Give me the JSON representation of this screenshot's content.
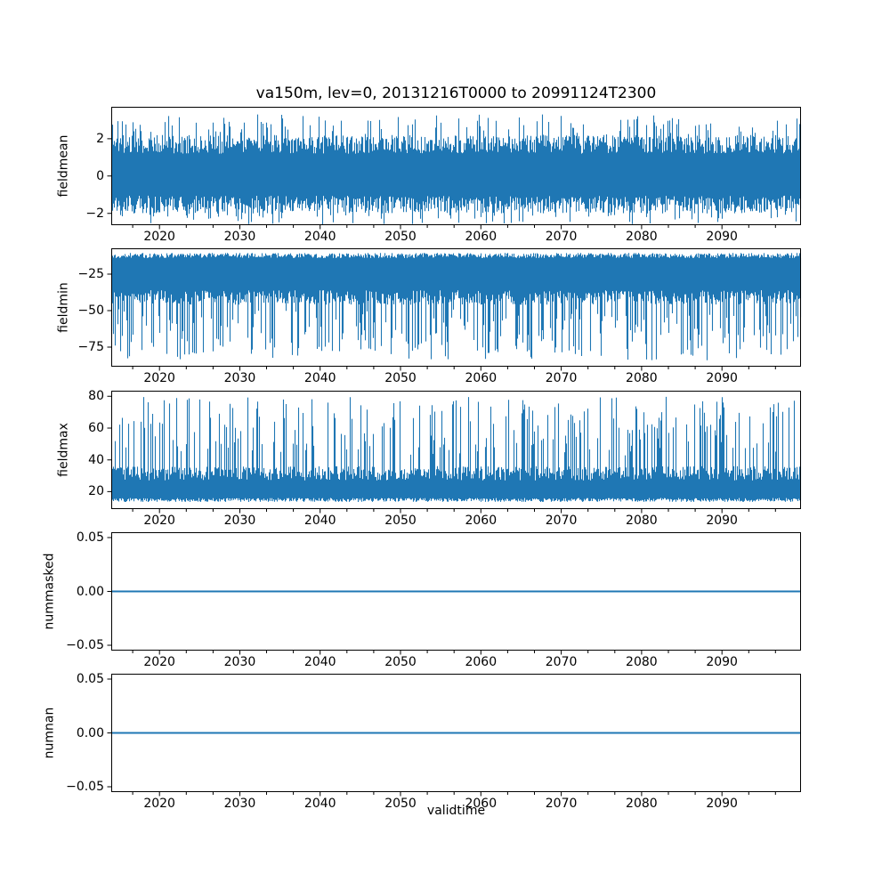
{
  "figure": {
    "title": "va150m, lev=0, 20131216T0000 to 20991124T2300",
    "xlabel": "validtime",
    "background": "#ffffff",
    "text_color": "#000000",
    "axis_color": "#000000"
  },
  "chart_data": {
    "type": "line",
    "title": "va150m, lev=0, 20131216T0000 to 20991124T2300",
    "subtitle": "",
    "xlabel": "validtime",
    "time_span": "20131216T0000 to 20991124T2300",
    "line_color": "#1f77b4",
    "legend": "none",
    "grid": false,
    "x": {
      "lim": [
        2014.0,
        2099.84
      ],
      "major_ticks": [
        2020,
        2030,
        2040,
        2050,
        2060,
        2070,
        2080,
        2090
      ],
      "tick_labels": [
        "2020",
        "2030",
        "2040",
        "2050",
        "2060",
        "2070",
        "2080",
        "2090"
      ],
      "minors_per_decade": 2
    },
    "subplots": [
      {
        "name": "fieldmean",
        "ylabel": "fieldmean",
        "ylim": [
          -2.63,
          3.71
        ],
        "yticks": [
          {
            "v": 2,
            "label": "2"
          },
          {
            "v": 0,
            "label": "0"
          },
          {
            "v": -2,
            "label": "−2"
          }
        ],
        "seed": 11,
        "noise": {
          "base_lo": -1.05,
          "jit_lo": 0.95,
          "base_hi": 1.2,
          "jit_hi": 1.0,
          "p_up": 0.16,
          "up_to": 3.3,
          "p_dn": 0.13,
          "dn_to": -2.6
        },
        "summary": "dense hourly noise band about -1.8 to 2.2, extremes about -2.6 to 3.3"
      },
      {
        "name": "fieldmin",
        "ylabel": "fieldmin",
        "ylim": [
          -88.4,
          -7.3
        ],
        "yticks": [
          {
            "v": -25,
            "label": "−25"
          },
          {
            "v": -50,
            "label": "−50"
          },
          {
            "v": -75,
            "label": "−75"
          }
        ],
        "seed": 22,
        "noise": {
          "base_lo": -36,
          "jit_lo": 10,
          "base_hi": -14,
          "jit_hi": 3.5,
          "p_up": 0,
          "up_to": 0,
          "p_dn": 0.3,
          "dn_to": -84
        },
        "summary": "dense noise band about -46 to -10.5 with downward spikes to about -84"
      },
      {
        "name": "fieldmax",
        "ylabel": "fieldmax",
        "ylim": [
          9.0,
          83.5
        ],
        "yticks": [
          {
            "v": 80,
            "label": "80"
          },
          {
            "v": 60,
            "label": "60"
          },
          {
            "v": 40,
            "label": "40"
          },
          {
            "v": 20,
            "label": "20"
          }
        ],
        "seed": 33,
        "noise": {
          "base_lo": 16,
          "jit_lo": 2.5,
          "base_hi": 27,
          "jit_hi": 9,
          "p_up": 0.26,
          "up_to": 80,
          "p_dn": 0,
          "dn_to": 0
        },
        "summary": "dense noise band about 13.5 to 36 with upward spikes to about 80"
      },
      {
        "name": "nummasked",
        "ylabel": "nummasked",
        "ylim": [
          -0.055,
          0.055
        ],
        "yticks": [
          {
            "v": 0.05,
            "label": "0.05"
          },
          {
            "v": 0,
            "label": "0.00"
          },
          {
            "v": -0.05,
            "label": "−0.05"
          }
        ],
        "flat": 0,
        "summary": "constant 0.00 over full time range"
      },
      {
        "name": "numnan",
        "ylabel": "numnan",
        "ylim": [
          -0.055,
          0.055
        ],
        "yticks": [
          {
            "v": 0.05,
            "label": "0.05"
          },
          {
            "v": 0,
            "label": "0.00"
          },
          {
            "v": -0.05,
            "label": "−0.05"
          }
        ],
        "flat": 0,
        "summary": "constant 0.00 over full time range"
      }
    ]
  }
}
